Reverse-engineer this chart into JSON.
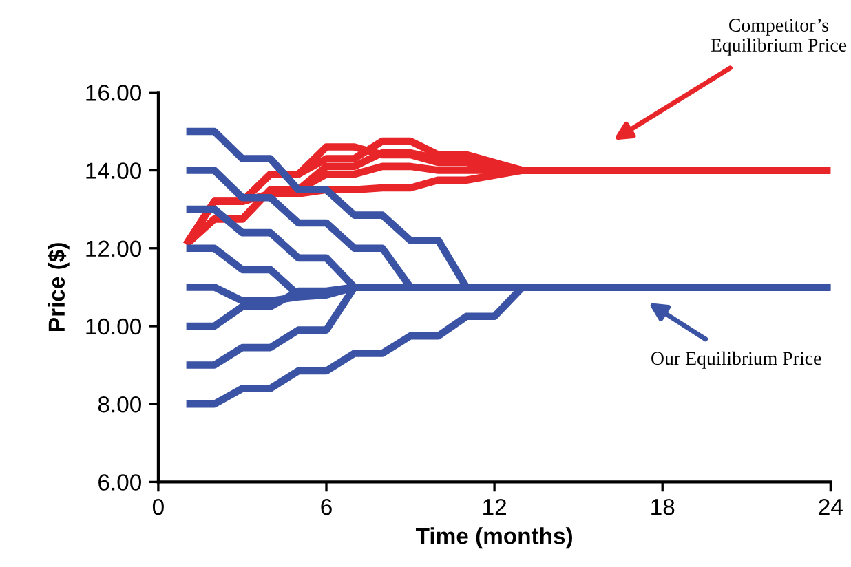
{
  "chart_data": {
    "type": "line",
    "xlabel": "Time (months)",
    "ylabel": "Price ($)",
    "xlim": [
      0,
      24
    ],
    "xticks": [
      0,
      6,
      12,
      18,
      24
    ],
    "ylim": [
      6,
      16
    ],
    "yticks": [
      {
        "value": 6,
        "label": "6.00"
      },
      {
        "value": 8,
        "label": "8.00"
      },
      {
        "value": 10,
        "label": "10.00"
      },
      {
        "value": 12,
        "label": "12.00"
      },
      {
        "value": 14,
        "label": "14.00"
      },
      {
        "value": 16,
        "label": "16.00"
      }
    ],
    "annotations": [
      "Competitor’s\nEquilibrium Price",
      "Our Equilibrium Price"
    ],
    "series": [
      {
        "color": "#3a53a4",
        "x": [
          1,
          2,
          3,
          4,
          5,
          6,
          7,
          8,
          9,
          10,
          11,
          24
        ],
        "values": [
          15,
          15,
          14.3,
          14.3,
          13.5,
          13.5,
          12.85,
          12.85,
          12.2,
          12.2,
          11,
          11
        ]
      },
      {
        "color": "#3a53a4",
        "x": [
          1,
          2,
          3,
          4,
          5,
          6,
          7,
          8,
          9,
          24
        ],
        "values": [
          14,
          14,
          13.3,
          13.3,
          12.65,
          12.65,
          12,
          12,
          11,
          11
        ]
      },
      {
        "color": "#3a53a4",
        "x": [
          1,
          2,
          3,
          4,
          5,
          6,
          7,
          24
        ],
        "values": [
          13,
          13,
          12.4,
          12.4,
          11.75,
          11.75,
          11,
          11
        ]
      },
      {
        "color": "#3a53a4",
        "x": [
          1,
          2,
          3,
          4,
          5,
          6,
          7,
          24
        ],
        "values": [
          12,
          12,
          11.45,
          11.45,
          10.8,
          10.85,
          11,
          11
        ]
      },
      {
        "color": "#3a53a4",
        "x": [
          1,
          2,
          3,
          4,
          5,
          6,
          7,
          24
        ],
        "values": [
          11,
          11,
          10.65,
          10.65,
          10.75,
          10.8,
          11,
          11
        ]
      },
      {
        "color": "#3a53a4",
        "x": [
          1,
          2,
          3,
          4,
          5,
          6,
          7,
          24
        ],
        "values": [
          10,
          10,
          10.5,
          10.5,
          10.9,
          10.9,
          11,
          11
        ]
      },
      {
        "color": "#3a53a4",
        "x": [
          1,
          2,
          3,
          4,
          5,
          6,
          7,
          24
        ],
        "values": [
          9,
          9,
          9.45,
          9.45,
          9.9,
          9.9,
          11,
          11
        ]
      },
      {
        "color": "#3a53a4",
        "x": [
          1,
          2,
          3,
          4,
          5,
          6,
          7,
          8,
          9,
          10,
          11,
          12,
          13,
          24
        ],
        "values": [
          8,
          8,
          8.4,
          8.4,
          8.85,
          8.85,
          9.3,
          9.3,
          9.75,
          9.75,
          10.25,
          10.25,
          11,
          11
        ]
      },
      {
        "color": "#e8262a",
        "x": [
          1,
          2,
          3,
          4,
          5,
          6,
          7,
          8,
          9,
          10,
          11,
          13,
          24
        ],
        "values": [
          12.1,
          13.2,
          13.2,
          13.9,
          13.9,
          14.6,
          14.6,
          14.4,
          14.4,
          14.2,
          14.2,
          14,
          14
        ]
      },
      {
        "color": "#e8262a",
        "x": [
          1,
          2,
          3,
          4,
          5,
          6,
          7,
          8,
          9,
          10,
          11,
          13,
          24
        ],
        "values": [
          12.1,
          13.2,
          13.2,
          13.9,
          13.9,
          14.3,
          14.3,
          14.75,
          14.75,
          14.4,
          14.4,
          14,
          14
        ]
      },
      {
        "color": "#e8262a",
        "x": [
          1,
          2,
          3,
          4,
          5,
          6,
          7,
          8,
          9,
          10,
          11,
          13,
          24
        ],
        "values": [
          12.1,
          12.75,
          12.75,
          13.5,
          13.5,
          14.1,
          14.1,
          14.45,
          14.45,
          14.3,
          14.3,
          14,
          14
        ]
      },
      {
        "color": "#e8262a",
        "x": [
          1,
          2,
          3,
          4,
          5,
          6,
          7,
          8,
          9,
          10,
          11,
          13,
          24
        ],
        "values": [
          12.1,
          12.75,
          12.75,
          13.5,
          13.5,
          13.9,
          13.9,
          14.1,
          14.1,
          14,
          14,
          14,
          14
        ]
      },
      {
        "color": "#e8262a",
        "x": [
          1,
          2,
          3,
          4,
          5,
          6,
          7,
          8,
          9,
          10,
          11,
          13,
          24
        ],
        "values": [
          12.1,
          13.2,
          13.2,
          13.4,
          13.4,
          13.5,
          13.5,
          13.55,
          13.55,
          13.75,
          13.75,
          14,
          14
        ]
      }
    ]
  }
}
